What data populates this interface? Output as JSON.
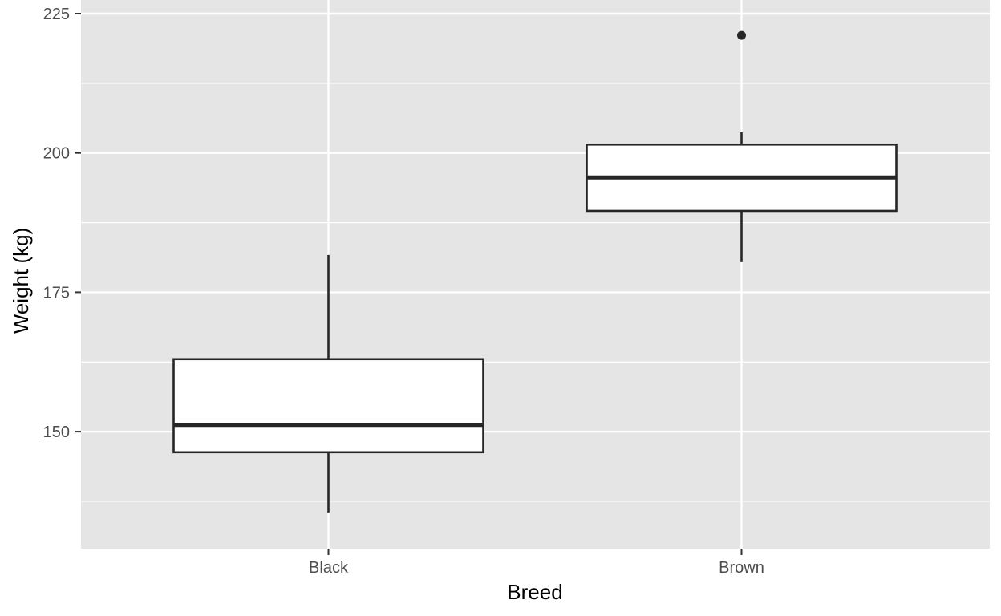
{
  "chart_data": {
    "type": "boxplot",
    "xlabel": "Breed",
    "ylabel": "Weight (kg)",
    "categories": [
      "Black",
      "Brown"
    ],
    "ylim": [
      129,
      225
    ],
    "yticks": [
      150,
      175,
      200,
      225
    ],
    "grid": true,
    "legend": "none",
    "boxes": [
      {
        "category": "Black",
        "whisker_low": 135.5,
        "q1": 146.3,
        "median": 151.2,
        "q3": 163.0,
        "whisker_high": 181.7,
        "outliers": []
      },
      {
        "category": "Brown",
        "whisker_low": 180.4,
        "q1": 189.6,
        "median": 195.6,
        "q3": 201.5,
        "whisker_high": 203.7,
        "outliers": [
          221.1
        ]
      }
    ],
    "colors": {
      "panel": "#e5e5e5",
      "grid": "#ffffff",
      "box_fill": "#ffffff",
      "box_line": "#262626",
      "tick_label": "#4d4d4d"
    }
  }
}
